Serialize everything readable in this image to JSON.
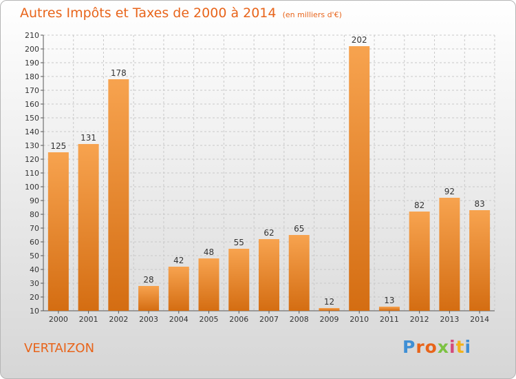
{
  "header": {
    "title": "Autres Impôts et Taxes de 2000 à 2014",
    "unit": "(en milliers d'€)"
  },
  "footer": {
    "town": "VERTAIZON",
    "logo_parts": [
      "P",
      "r",
      "o",
      "x",
      "i",
      "t",
      "i"
    ],
    "logo_colors": [
      "#3f8fd5",
      "#e8641a",
      "#e8641a",
      "#7cc242",
      "#d44a7a",
      "#f2b21b",
      "#3f8fd5"
    ]
  },
  "colors": {
    "accent": "#e8641a",
    "bar_top": "#f7a34f",
    "bar_bottom": "#d46d12",
    "grid": "#c8c8c8"
  },
  "chart_data": {
    "type": "bar",
    "title": "Autres Impôts et Taxes de 2000 à 2014",
    "subtitle": "(en milliers d'€)",
    "categories": [
      "2000",
      "2001",
      "2002",
      "2003",
      "2004",
      "2005",
      "2006",
      "2007",
      "2008",
      "2009",
      "2010",
      "2011",
      "2012",
      "2013",
      "2014"
    ],
    "values": [
      125,
      131,
      178,
      28,
      42,
      48,
      55,
      62,
      65,
      12,
      202,
      13,
      82,
      92,
      83
    ],
    "ylim": [
      10,
      210
    ],
    "yticks": [
      10,
      20,
      30,
      40,
      50,
      60,
      70,
      80,
      90,
      100,
      110,
      120,
      130,
      140,
      150,
      160,
      170,
      180,
      190,
      200,
      210
    ],
    "grid": true
  }
}
